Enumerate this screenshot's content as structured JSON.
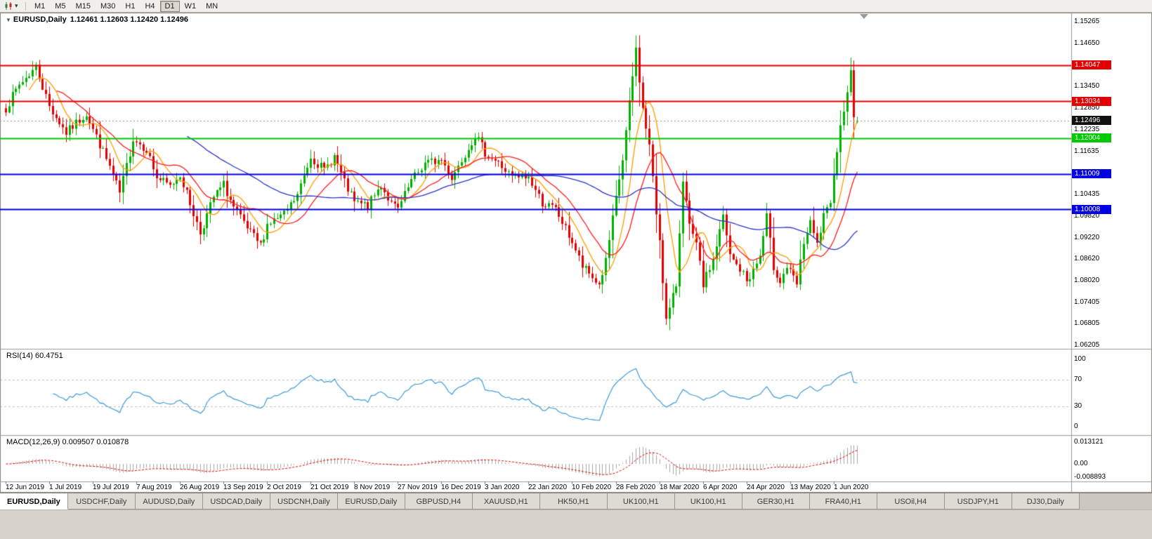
{
  "toolbar": {
    "timeframes": [
      {
        "label": "M1"
      },
      {
        "label": "M5"
      },
      {
        "label": "M15"
      },
      {
        "label": "M30"
      },
      {
        "label": "H1"
      },
      {
        "label": "H4"
      },
      {
        "label": "D1"
      },
      {
        "label": "W1"
      },
      {
        "label": "MN"
      }
    ],
    "active_timeframe": "D1",
    "chart_type_icon": "candlestick-chart-icon",
    "dropdown_icon": "chevron-down-icon"
  },
  "tabs": {
    "active_index": 0,
    "items": [
      "EURUSD,Daily",
      "USDCHF,Daily",
      "AUDUSD,Daily",
      "USDCAD,Daily",
      "USDCNH,Daily",
      "EURUSD,Daily",
      "GBPUSD,H4",
      "XAUUSD,H1",
      "HK50,H1",
      "UK100,H1",
      "UK100,H1",
      "GER30,H1",
      "FRA40,H1",
      "USOil,H4",
      "USDJPY,H1",
      "DJ30,Daily"
    ]
  },
  "chart_data": {
    "type": "candlestick",
    "symbol": "EURUSD",
    "period": "Daily",
    "title_symbol": "EURUSD,Daily",
    "title_ohlc": "1.12461 1.12603 1.12420 1.12496",
    "collapse_icon": "▼",
    "last_bar": {
      "open": 1.12461,
      "high": 1.12603,
      "low": 1.1242,
      "close": 1.12496
    },
    "candle_count": 255,
    "bars_per_date_label": 13,
    "price_range": [
      1.0611,
      1.1552
    ],
    "price_axis_labels": [
      "1.15265",
      "1.14650",
      "1.13450",
      "1.12850",
      "1.12235",
      "1.11635",
      "1.10435",
      "1.09820",
      "1.09220",
      "1.08620",
      "1.08020",
      "1.07405",
      "1.06805",
      "1.06205"
    ],
    "current_price": {
      "label": "1.12496",
      "value": 1.12496,
      "bg": "#111111",
      "fg": "#ffffff"
    },
    "horizontal_lines": [
      {
        "price": 1.14047,
        "label": "1.14047",
        "color": "#e30000",
        "width": 2
      },
      {
        "price": 1.13034,
        "label": "1.13034",
        "color": "#e30000",
        "width": 2
      },
      {
        "price": 1.12004,
        "label": "1.12004",
        "color": "#00ca00",
        "width": 2
      },
      {
        "price": 1.11009,
        "label": "1.11009",
        "color": "#0000e0",
        "width": 2
      },
      {
        "price": 1.10008,
        "label": "1.10008",
        "color": "#0000e0",
        "width": 2
      }
    ],
    "moving_averages": [
      {
        "period": 8,
        "color": "#ff9c00"
      },
      {
        "period": 16,
        "color": "#ff1a1a"
      },
      {
        "period": 55,
        "color": "#2b34c8"
      }
    ],
    "colors": {
      "up": "#00b000",
      "down": "#e30000",
      "background": "#ffffff"
    },
    "date_labels": [
      "12 Jun 2019",
      "1 Jul 2019",
      "19 Jul 2019",
      "7 Aug 2019",
      "26 Aug 2019",
      "13 Sep 2019",
      "2 Oct 2019",
      "21 Oct 2019",
      "8 Nov 2019",
      "27 Nov 2019",
      "16 Dec 2019",
      "3 Jan 2020",
      "22 Jan 2020",
      "10 Feb 2020",
      "28 Feb 2020",
      "18 Mar 2020",
      "6 Apr 2020",
      "24 Apr 2020",
      "13 May 2020",
      "1 Jun 2020"
    ],
    "price_path_anchors": [
      [
        0,
        1.1285
      ],
      [
        4,
        1.135
      ],
      [
        9,
        1.14
      ],
      [
        13,
        1.129
      ],
      [
        18,
        1.1215
      ],
      [
        24,
        1.127
      ],
      [
        26,
        1.1225
      ],
      [
        31,
        1.112
      ],
      [
        34,
        1.1045
      ],
      [
        38,
        1.12
      ],
      [
        42,
        1.117
      ],
      [
        45,
        1.109
      ],
      [
        49,
        1.1065
      ],
      [
        52,
        1.11
      ],
      [
        56,
        1.099
      ],
      [
        58,
        1.0935
      ],
      [
        62,
        1.1035
      ],
      [
        65,
        1.107
      ],
      [
        68,
        1.1005
      ],
      [
        72,
        1.0945
      ],
      [
        76,
        1.09
      ],
      [
        78,
        1.096
      ],
      [
        83,
        1.0985
      ],
      [
        87,
        1.104
      ],
      [
        91,
        1.115
      ],
      [
        95,
        1.111
      ],
      [
        98,
        1.115
      ],
      [
        101,
        1.1075
      ],
      [
        104,
        1.102
      ],
      [
        108,
        1.101
      ],
      [
        112,
        1.107
      ],
      [
        115,
        1.1015
      ],
      [
        117,
        1.1
      ],
      [
        121,
        1.108
      ],
      [
        125,
        1.113
      ],
      [
        130,
        1.114
      ],
      [
        133,
        1.109
      ],
      [
        140,
        1.121
      ],
      [
        143,
        1.116
      ],
      [
        147,
        1.113
      ],
      [
        151,
        1.109
      ],
      [
        156,
        1.109
      ],
      [
        160,
        1.102
      ],
      [
        164,
        1.1
      ],
      [
        169,
        1.091
      ],
      [
        172,
        1.084
      ],
      [
        177,
        1.079
      ],
      [
        179,
        1.0855
      ],
      [
        182,
        1.103
      ],
      [
        184,
        1.114
      ],
      [
        188,
        1.145
      ],
      [
        190,
        1.128
      ],
      [
        192,
        1.118
      ],
      [
        194,
        1.099
      ],
      [
        195,
        1.092
      ],
      [
        197,
        1.069
      ],
      [
        198,
        1.072
      ],
      [
        200,
        1.079
      ],
      [
        202,
        1.109
      ],
      [
        204,
        1.095
      ],
      [
        206,
        1.09
      ],
      [
        208,
        1.079
      ],
      [
        211,
        1.086
      ],
      [
        214,
        1.098
      ],
      [
        216,
        1.087
      ],
      [
        220,
        1.082
      ],
      [
        221,
        1.08
      ],
      [
        223,
        1.083
      ],
      [
        225,
        1.087
      ],
      [
        227,
        1.098
      ],
      [
        229,
        1.084
      ],
      [
        231,
        1.08
      ],
      [
        233,
        1.084
      ],
      [
        236,
        1.079
      ],
      [
        238,
        1.091
      ],
      [
        240,
        1.096
      ],
      [
        242,
        1.09
      ],
      [
        244,
        1.098
      ],
      [
        246,
        1.101
      ],
      [
        247,
        1.111
      ],
      [
        249,
        1.123
      ],
      [
        251,
        1.134
      ],
      [
        252,
        1.138
      ],
      [
        253,
        1.1265
      ],
      [
        254,
        1.12496
      ]
    ],
    "indicators": {
      "rsi": {
        "title": "RSI(14) 60.4751",
        "period": 14,
        "value": 60.4751,
        "color": "#3e9bd8",
        "levels": [
          70,
          30
        ],
        "range": [
          0,
          100
        ],
        "axis_labels": [
          {
            "label": "100",
            "value": 100
          },
          {
            "label": "70",
            "value": 70
          },
          {
            "label": "30",
            "value": 30
          },
          {
            "label": "0",
            "value": 0
          }
        ]
      },
      "macd": {
        "title": "MACD(12,26,9) 0.009507 0.010878",
        "fast": 12,
        "slow": 26,
        "signal": 9,
        "macd_value": 0.009507,
        "signal_value": 0.010878,
        "range": [
          -0.008893,
          0.013121
        ],
        "histogram_color": "#a8a8a8",
        "signal_color": "#e30000",
        "axis_labels": [
          {
            "label": "0.013121",
            "value": 0.013121
          },
          {
            "label": "0.00",
            "value": 0
          },
          {
            "label": "-0.008893",
            "value": -0.008893
          }
        ]
      }
    }
  }
}
